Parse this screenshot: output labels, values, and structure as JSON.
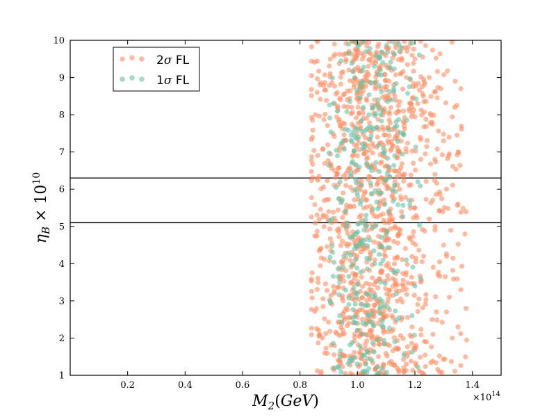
{
  "chart_data": {
    "type": "scatter",
    "xlabel": "M_2(GeV)",
    "ylabel": "η_B × 10^10",
    "x_offset_text": "×10^14",
    "xlim": [
      0.0,
      1.5
    ],
    "ylim": [
      1,
      10
    ],
    "x_ticks": [
      "0.2",
      "0.4",
      "0.6",
      "0.8",
      "1.0",
      "1.2",
      "1.4"
    ],
    "y_ticks": [
      "1",
      "2",
      "3",
      "4",
      "5",
      "6",
      "7",
      "8",
      "9",
      "10"
    ],
    "hlines": [
      5.1,
      6.3
    ],
    "grid": false,
    "legend_position": "top-left",
    "series": [
      {
        "name": "2σ FL",
        "color": "#fc8d62",
        "x_distribution": {
          "min": 0.84,
          "max": 1.38,
          "peak": 1.05
        },
        "points": [
          [
            0.86,
            9.44
          ],
          [
            0.88,
            7.08
          ],
          [
            0.9,
            5.4
          ],
          [
            0.87,
            4.38
          ],
          [
            0.88,
            3.06
          ],
          [
            0.89,
            2.12
          ],
          [
            0.86,
            1.12
          ],
          [
            0.92,
            9.9
          ],
          [
            0.93,
            8.6
          ],
          [
            0.94,
            7.7
          ],
          [
            0.92,
            6.5
          ],
          [
            0.95,
            5.9
          ],
          [
            0.93,
            4.9
          ],
          [
            0.94,
            3.6
          ],
          [
            0.96,
            2.8
          ],
          [
            0.92,
            1.8
          ],
          [
            0.97,
            9.2
          ],
          [
            0.98,
            8.2
          ],
          [
            0.99,
            7.2
          ],
          [
            0.96,
            6.1
          ],
          [
            0.98,
            4.3
          ],
          [
            0.99,
            3.2
          ],
          [
            0.97,
            2.4
          ],
          [
            0.98,
            1.4
          ],
          [
            1.0,
            9.7
          ],
          [
            1.01,
            8.8
          ],
          [
            1.02,
            7.9
          ],
          [
            1.0,
            6.9
          ],
          [
            1.03,
            5.7
          ],
          [
            1.01,
            4.6
          ],
          [
            1.02,
            3.8
          ],
          [
            1.0,
            2.7
          ],
          [
            1.04,
            1.6
          ],
          [
            1.05,
            9.4
          ],
          [
            1.06,
            8.4
          ],
          [
            1.07,
            7.4
          ],
          [
            1.05,
            6.6
          ],
          [
            1.08,
            5.3
          ],
          [
            1.06,
            4.1
          ],
          [
            1.07,
            3.0
          ],
          [
            1.05,
            2.2
          ],
          [
            1.09,
            1.2
          ],
          [
            1.1,
            9.8
          ],
          [
            1.11,
            8.9
          ],
          [
            1.12,
            7.6
          ],
          [
            1.1,
            6.3
          ],
          [
            1.13,
            5.0
          ],
          [
            1.11,
            3.9
          ],
          [
            1.12,
            2.6
          ],
          [
            1.14,
            1.7
          ],
          [
            1.15,
            9.1
          ],
          [
            1.16,
            8.1
          ],
          [
            1.17,
            7.0
          ],
          [
            1.15,
            5.8
          ],
          [
            1.18,
            4.7
          ],
          [
            1.16,
            3.4
          ],
          [
            1.19,
            2.3
          ],
          [
            1.17,
            1.3
          ],
          [
            1.2,
            9.5
          ],
          [
            1.21,
            8.3
          ],
          [
            1.22,
            6.8
          ],
          [
            1.2,
            5.5
          ],
          [
            1.23,
            4.2
          ],
          [
            1.21,
            2.9
          ],
          [
            1.24,
            1.9
          ],
          [
            1.25,
            9.0
          ],
          [
            1.26,
            7.8
          ],
          [
            1.27,
            6.4
          ],
          [
            1.25,
            5.2
          ],
          [
            1.28,
            3.7
          ],
          [
            1.26,
            2.5
          ],
          [
            1.29,
            8.7
          ],
          [
            1.3,
            7.3
          ],
          [
            1.31,
            6.0
          ],
          [
            1.3,
            4.5
          ],
          [
            1.32,
            3.1
          ],
          [
            1.33,
            2.0
          ],
          [
            1.34,
            8.9
          ],
          [
            1.35,
            7.0
          ],
          [
            1.35,
            5.6
          ],
          [
            1.36,
            3.3
          ],
          [
            1.35,
            2.3
          ],
          [
            1.38,
            1.95
          ],
          [
            1.36,
            8.7
          ],
          [
            0.91,
            5.1
          ],
          [
            0.95,
            3.0
          ],
          [
            1.03,
            2.1
          ],
          [
            1.08,
            6.7
          ],
          [
            1.13,
            8.5
          ],
          [
            1.18,
            6.1
          ],
          [
            1.22,
            3.5
          ],
          [
            1.27,
            4.9
          ],
          [
            0.99,
            9.95
          ],
          [
            1.04,
            9.95
          ],
          [
            1.14,
            9.95
          ],
          [
            1.19,
            9.6
          ],
          [
            0.94,
            1.3
          ],
          [
            1.02,
            1.05
          ]
        ]
      },
      {
        "name": "1σ FL",
        "color": "#66c2a5",
        "x_distribution": {
          "min": 0.9,
          "max": 1.22,
          "peak": 1.04
        },
        "points": [
          [
            0.93,
            8.1
          ],
          [
            0.95,
            7.3
          ],
          [
            0.94,
            6.2
          ],
          [
            0.96,
            5.0
          ],
          [
            0.95,
            3.9
          ],
          [
            0.97,
            2.9
          ],
          [
            0.94,
            1.5
          ],
          [
            0.99,
            9.0
          ],
          [
            1.0,
            7.6
          ],
          [
            0.98,
            6.7
          ],
          [
            1.01,
            5.6
          ],
          [
            0.99,
            4.4
          ],
          [
            1.0,
            3.2
          ],
          [
            1.02,
            2.1
          ],
          [
            1.03,
            9.7
          ],
          [
            1.04,
            8.0
          ],
          [
            1.05,
            6.5
          ],
          [
            1.03,
            5.3
          ],
          [
            1.06,
            4.0
          ],
          [
            1.04,
            2.6
          ],
          [
            1.05,
            1.4
          ],
          [
            1.08,
            9.2
          ],
          [
            1.09,
            7.1
          ],
          [
            1.07,
            5.9
          ],
          [
            1.1,
            4.8
          ],
          [
            1.08,
            3.5
          ],
          [
            1.09,
            2.3
          ],
          [
            1.12,
            8.4
          ],
          [
            1.13,
            6.9
          ],
          [
            1.11,
            5.4
          ],
          [
            1.14,
            3.8
          ],
          [
            1.13,
            1.9
          ],
          [
            1.16,
            7.5
          ],
          [
            1.18,
            5.7
          ],
          [
            1.17,
            4.1
          ],
          [
            1.2,
            3.4
          ],
          [
            1.19,
            2.6
          ],
          [
            1.21,
            6.2
          ],
          [
            1.22,
            3.6
          ],
          [
            0.97,
            9.9
          ],
          [
            1.02,
            9.95
          ],
          [
            0.92,
            1.2
          ]
        ]
      }
    ]
  }
}
